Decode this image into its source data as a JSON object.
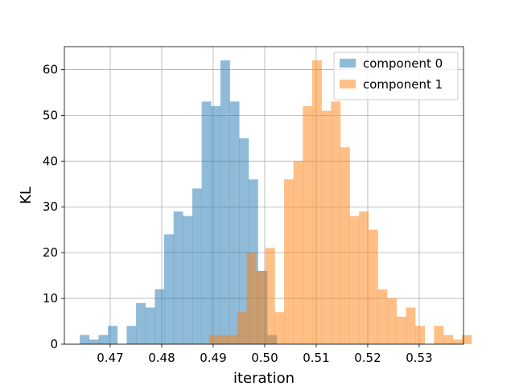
{
  "chart_data": {
    "type": "histogram",
    "title": "",
    "xlabel": "iteration",
    "ylabel": "KL",
    "xlim": [
      0.4611,
      0.5386
    ],
    "ylim": [
      0,
      65
    ],
    "xticks": [
      "0.47",
      "0.48",
      "0.49",
      "0.50",
      "0.51",
      "0.52",
      "0.53"
    ],
    "xtick_values": [
      0.47,
      0.48,
      0.49,
      0.5,
      0.51,
      0.52,
      0.53
    ],
    "yticks": [
      "0",
      "10",
      "20",
      "30",
      "40",
      "50",
      "60"
    ],
    "ytick_values": [
      0,
      10,
      20,
      30,
      40,
      50,
      60
    ],
    "grid": true,
    "legend_position": "top-right",
    "series": [
      {
        "name": "component 0",
        "color": "#1f77b4",
        "alpha": 0.5,
        "bin_start": 0.4641,
        "bin_width": 0.00182,
        "counts": [
          2,
          1,
          2,
          4,
          0,
          4,
          9,
          8,
          12,
          24,
          29,
          28,
          34,
          53,
          52,
          62,
          53,
          45,
          36,
          16,
          2
        ]
      },
      {
        "name": "component 1",
        "color": "#ff7f0e",
        "alpha": 0.5,
        "bin_start": 0.4892,
        "bin_width": 0.00182,
        "counts": [
          2,
          2,
          2,
          7,
          20,
          16,
          21,
          7,
          36,
          40,
          52,
          62,
          51,
          53,
          43,
          28,
          29,
          25,
          12,
          10,
          6,
          8,
          4,
          0,
          4,
          2,
          1,
          2
        ]
      }
    ]
  }
}
